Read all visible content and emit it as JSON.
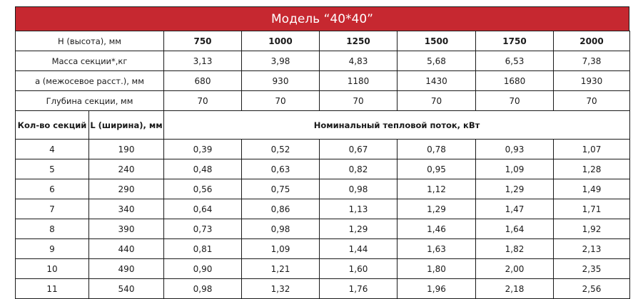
{
  "title": "Модель “40*40”",
  "param_rows": [
    {
      "label": "Н (высота), мм",
      "values": [
        "750",
        "1000",
        "1250",
        "1500",
        "1750",
        "2000"
      ],
      "bold": true
    },
    {
      "label": "Масса секции*,кг",
      "values": [
        "3,13",
        "3,98",
        "4,83",
        "5,68",
        "6,53",
        "7,38"
      ],
      "bold": false
    },
    {
      "label": "а (межосевое расст.), мм",
      "values": [
        "680",
        "930",
        "1180",
        "1430",
        "1680",
        "1930"
      ],
      "bold": false
    },
    {
      "label": "Глубина секции, мм",
      "values": [
        "70",
        "70",
        "70",
        "70",
        "70",
        "70"
      ],
      "bold": false
    }
  ],
  "col_headers": {
    "sections": "Кол-во секций",
    "width": "L (ширина), мм",
    "heat": "Номинальный тепловой поток, кВт"
  },
  "data_rows": [
    {
      "sections": "4",
      "width": "190",
      "values": [
        "0,39",
        "0,52",
        "0,67",
        "0,78",
        "0,93",
        "1,07"
      ]
    },
    {
      "sections": "5",
      "width": "240",
      "values": [
        "0,48",
        "0,63",
        "0,82",
        "0,95",
        "1,09",
        "1,28"
      ]
    },
    {
      "sections": "6",
      "width": "290",
      "values": [
        "0,56",
        "0,75",
        "0,98",
        "1,12",
        "1,29",
        "1,49"
      ]
    },
    {
      "sections": "7",
      "width": "340",
      "values": [
        "0,64",
        "0,86",
        "1,13",
        "1,29",
        "1,47",
        "1,71"
      ]
    },
    {
      "sections": "8",
      "width": "390",
      "values": [
        "0,73",
        "0,98",
        "1,29",
        "1,46",
        "1,64",
        "1,92"
      ]
    },
    {
      "sections": "9",
      "width": "440",
      "values": [
        "0,81",
        "1,09",
        "1,44",
        "1,63",
        "1,82",
        "2,13"
      ]
    },
    {
      "sections": "10",
      "width": "490",
      "values": [
        "0,90",
        "1,21",
        "1,60",
        "1,80",
        "2,00",
        "2,35"
      ]
    },
    {
      "sections": "11",
      "width": "540",
      "values": [
        "0,98",
        "1,32",
        "1,76",
        "1,96",
        "2,18",
        "2,56"
      ]
    }
  ],
  "colors": {
    "title_bg": "#c62830",
    "title_text": "#ffffff",
    "border": "#1a1a1a"
  }
}
